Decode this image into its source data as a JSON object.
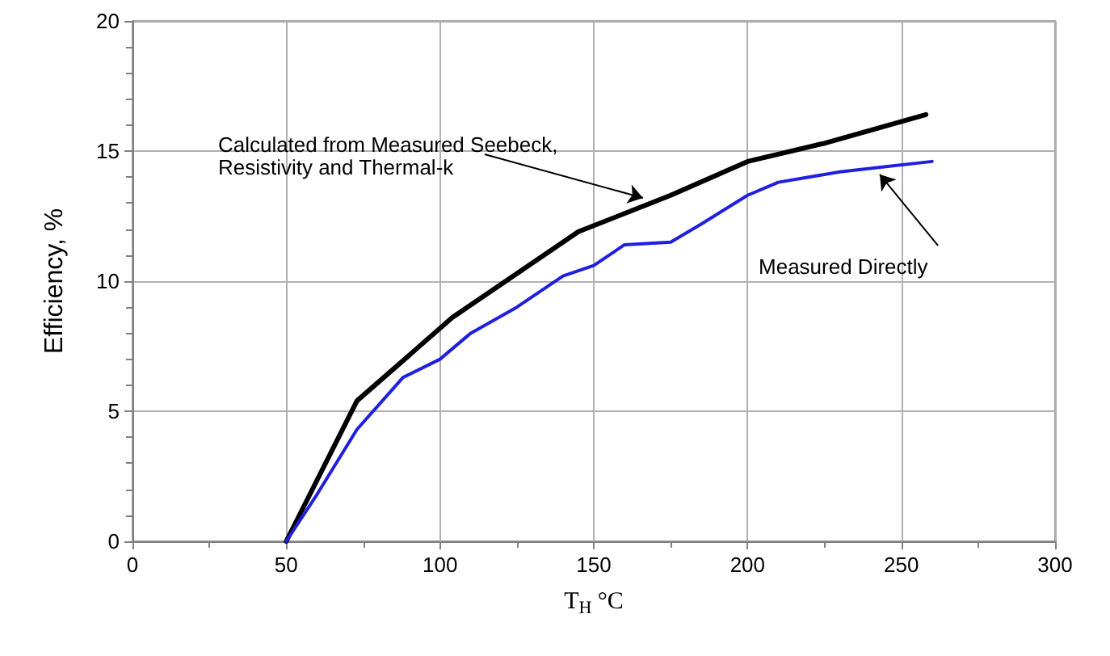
{
  "chart_data": {
    "type": "line",
    "xlabel": "T$_{H}$ °C",
    "ylabel": "Efficiency, %",
    "xlim": [
      0,
      300
    ],
    "xticks": [
      0,
      50,
      100,
      150,
      200,
      250,
      300
    ],
    "ylim": [
      0,
      20
    ],
    "yticks": [
      0,
      5,
      10,
      15,
      20
    ],
    "grid": true,
    "marker": "none",
    "line_style": "solid",
    "series": [
      {
        "color": "#000000",
        "x": [
          50,
          73,
          104,
          145,
          175,
          200,
          225,
          258
        ],
        "values": [
          0,
          5.4,
          8.6,
          11.9,
          13.3,
          14.6,
          15.3,
          16.4
        ]
      },
      {
        "color": "#1f1fe0",
        "x": [
          50,
          60,
          73,
          88,
          100,
          110,
          125,
          140,
          150,
          160,
          175,
          185,
          200,
          210,
          230,
          245,
          260
        ],
        "values": [
          0,
          1.8,
          4.3,
          6.3,
          7.0,
          8.0,
          9.0,
          10.2,
          10.6,
          11.4,
          11.5,
          12.2,
          13.3,
          13.8,
          14.2,
          14.4,
          14.6
        ]
      }
    ],
    "annotations": [
      {
        "text": "Calculated from Measured Seebeck,\nResistivity and Thermal-k",
        "x": 166,
        "y": 13.2
      },
      {
        "text": "Measured Directly",
        "x": 243,
        "y": 14.1
      }
    ]
  }
}
